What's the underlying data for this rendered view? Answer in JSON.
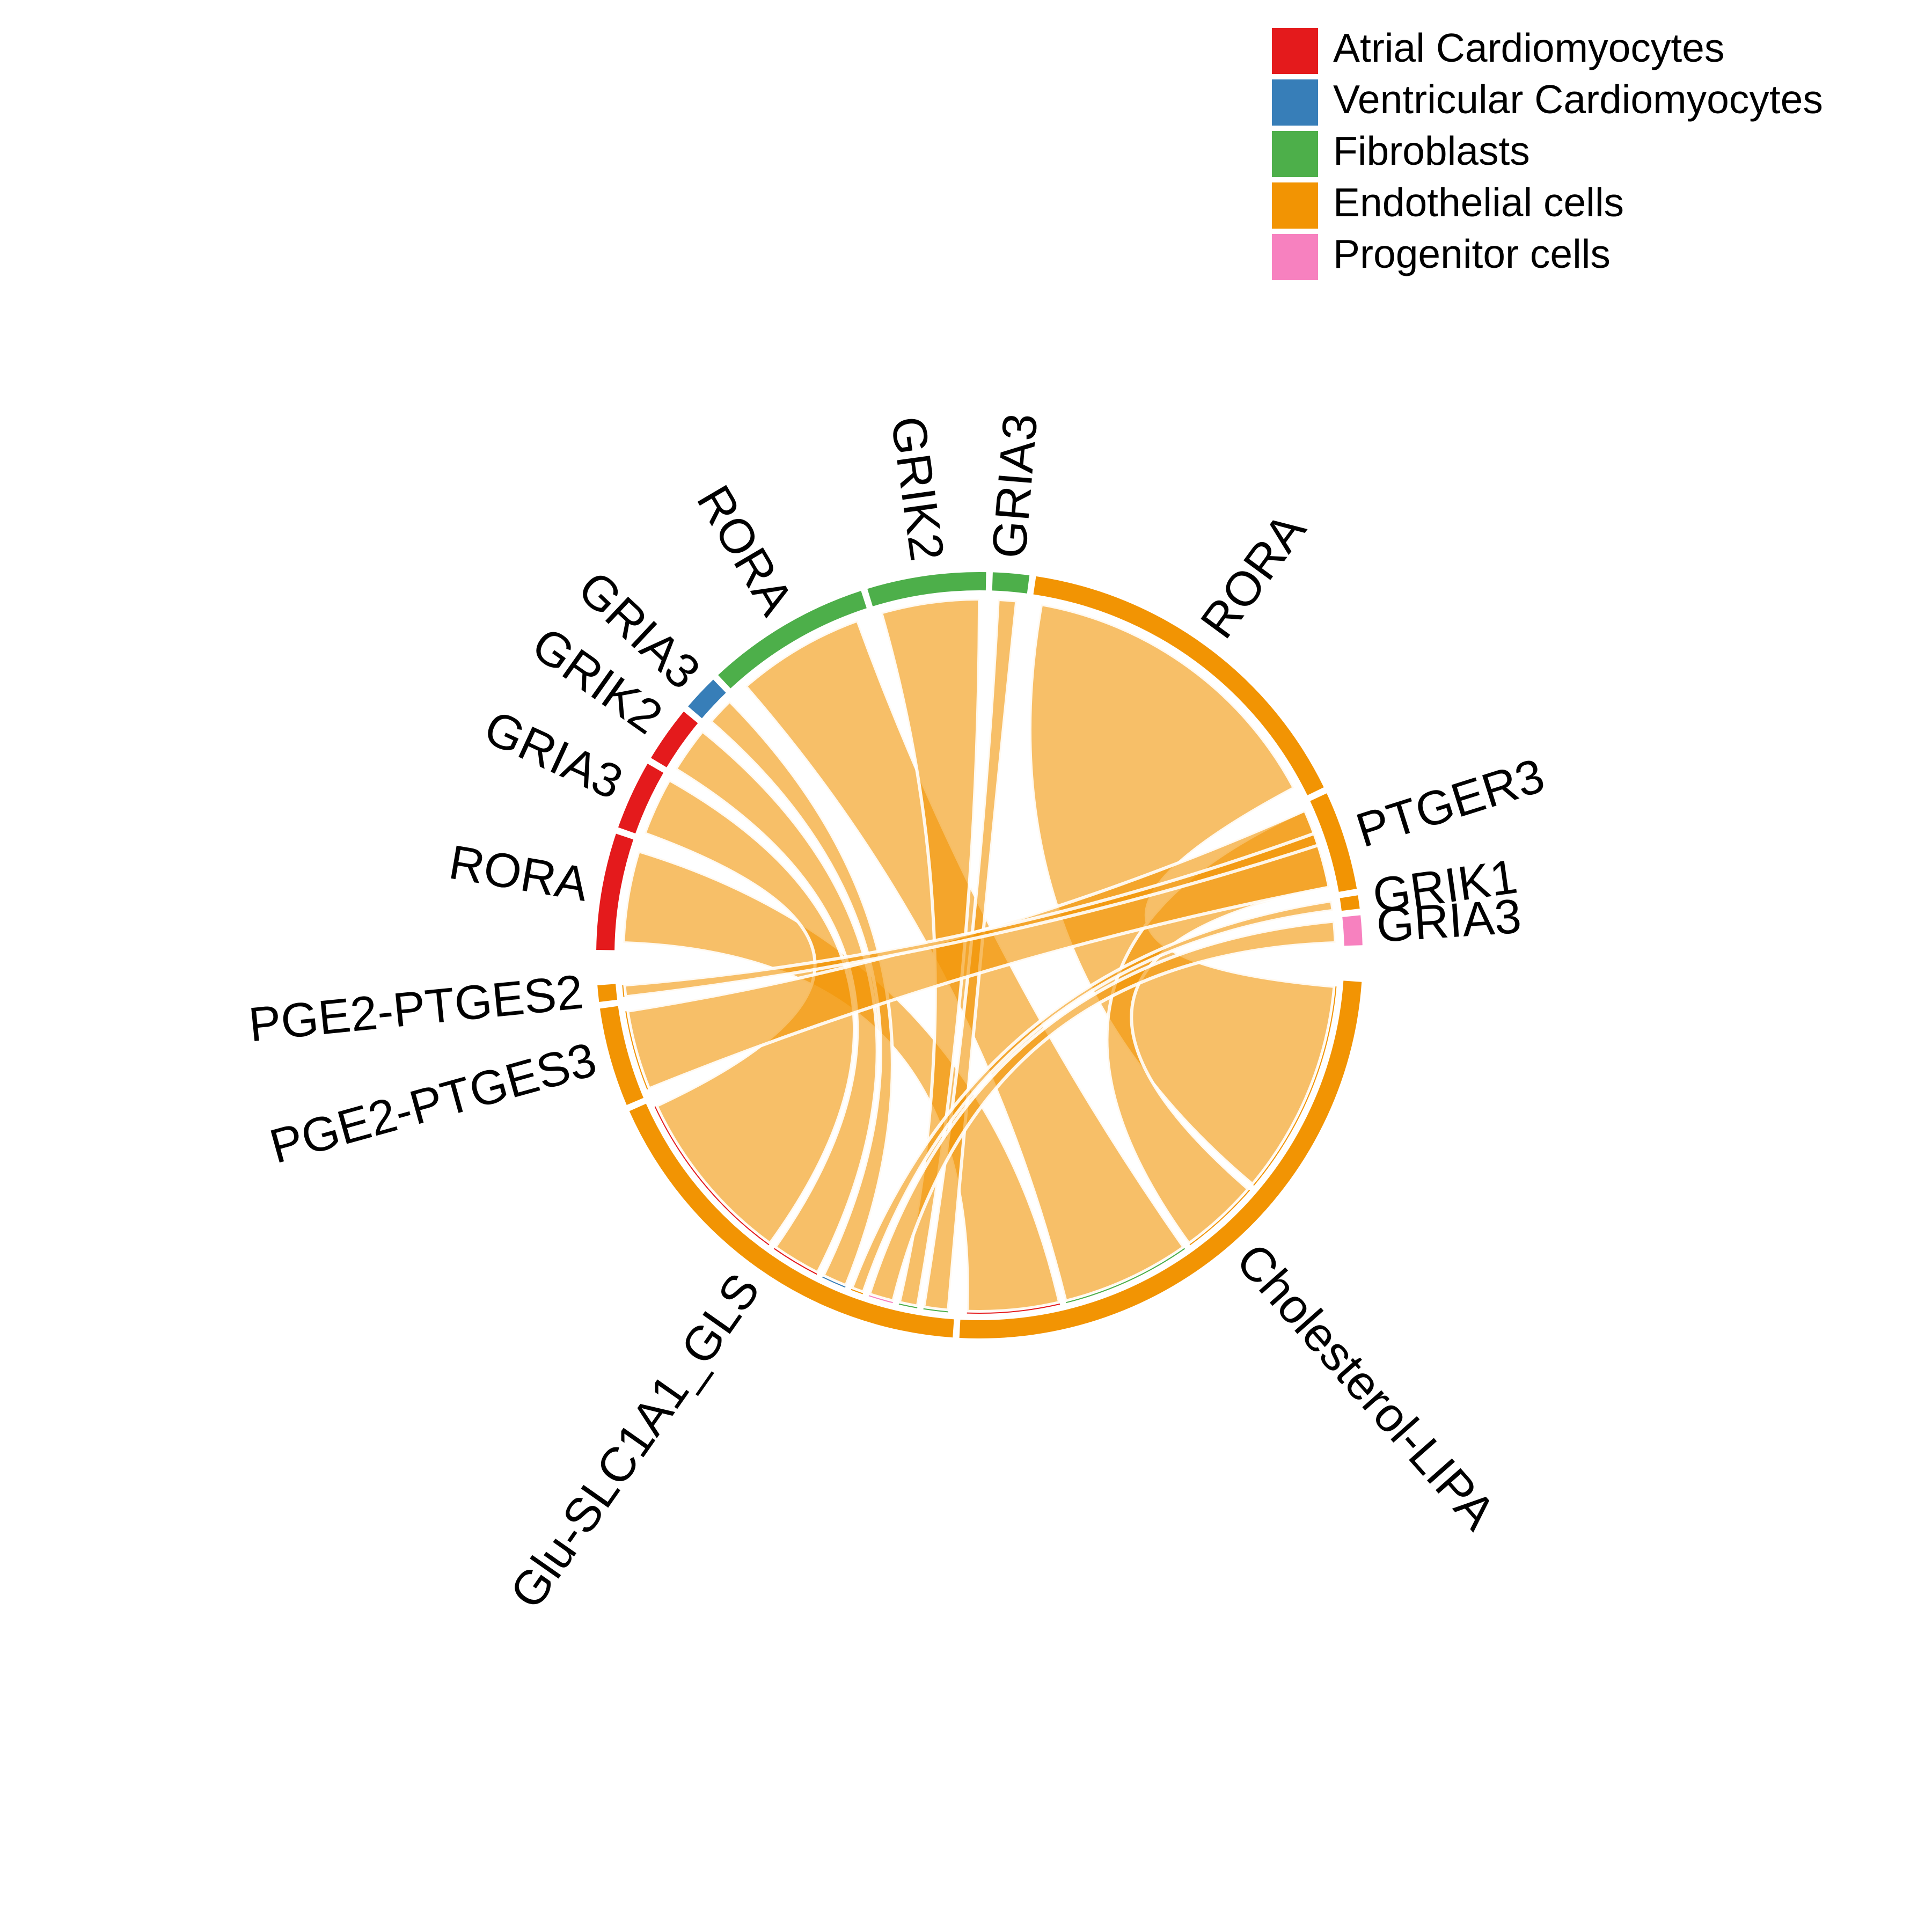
{
  "legend": {
    "items": [
      {
        "label": "Atrial Cardiomyocytes",
        "color": "#E41A1C"
      },
      {
        "label": "Ventricular Cardiomyocytes",
        "color": "#377EB8"
      },
      {
        "label": "Fibroblasts",
        "color": "#4DAF4A"
      },
      {
        "label": "Endothelial cells",
        "color": "#F29403"
      },
      {
        "label": "Progenitor cells",
        "color": "#F781BF"
      }
    ]
  },
  "link_color": "#F29403",
  "sectors": [
    {
      "id": "rora_atrial",
      "label": "RORA",
      "cell_type": "Atrial Cardiomyocytes",
      "color": "#E41A1C",
      "a0": 180.8,
      "a1": 198.5
    },
    {
      "id": "gria3_atrial",
      "label": "GRIA3",
      "cell_type": "Atrial Cardiomyocytes",
      "color": "#E41A1C",
      "a0": 199.5,
      "a1": 210.0
    },
    {
      "id": "grik2_atrial",
      "label": "GRIK2",
      "cell_type": "Atrial Cardiomyocytes",
      "color": "#E41A1C",
      "a0": 211.0,
      "a1": 219.5
    },
    {
      "id": "gria3_ventricular",
      "label": "GRIA3",
      "cell_type": "Ventricular Cardiomyocytes",
      "color": "#377EB8",
      "a0": 220.5,
      "a1": 226.0
    },
    {
      "id": "rora_fibro",
      "label": "RORA",
      "cell_type": "Fibroblasts",
      "color": "#4DAF4A",
      "a0": 227.0,
      "a1": 252.0
    },
    {
      "id": "grik2_fibro",
      "label": "GRIK2",
      "cell_type": "Fibroblasts",
      "color": "#4DAF4A",
      "a0": 253.0,
      "a1": 271.0
    },
    {
      "id": "gria3_fibro",
      "label": "GRIA3",
      "cell_type": "Fibroblasts",
      "color": "#4DAF4A",
      "a0": 272.0,
      "a1": 277.5
    },
    {
      "id": "rora_endo",
      "label": "RORA",
      "cell_type": "Endothelial cells",
      "color": "#F29403",
      "a0": 278.5,
      "a1": 334.0
    },
    {
      "id": "ptger3_endo",
      "label": "PTGER3",
      "cell_type": "Endothelial cells",
      "color": "#F29403",
      "a0": 335.0,
      "a1": 350.0
    },
    {
      "id": "grik1_endo",
      "label": "GRIK1",
      "cell_type": "Endothelial cells",
      "color": "#F29403",
      "a0": 351.0,
      "a1": 353.0
    },
    {
      "id": "gria3_prog",
      "label": "GRIA3",
      "cell_type": "Progenitor cells",
      "color": "#F781BF",
      "a0": 354.0,
      "a1": 358.5
    },
    {
      "id": "cholesterol_lipa",
      "label": "Cholesterol-LIPA",
      "cell_type": "Endothelial cells",
      "color": "#F29403",
      "a0": 4.0,
      "a1": 93.0
    },
    {
      "id": "glu_slc1a1_gls",
      "label": "Glu-SLC1A1_GLS",
      "cell_type": "Endothelial cells",
      "color": "#F29403",
      "a0": 94.0,
      "a1": 156.0
    },
    {
      "id": "pge2_ptges3",
      "label": "PGE2-PTGES3",
      "cell_type": "Endothelial cells",
      "color": "#F29403",
      "a0": 157.0,
      "a1": 172.0
    },
    {
      "id": "pge2_ptges2",
      "label": "PGE2-PTGES2",
      "cell_type": "Endothelial cells",
      "color": "#F29403",
      "a0": 173.0,
      "a1": 175.5
    }
  ],
  "links": [
    {
      "from": "cholesterol_lipa",
      "to": "rora_endo",
      "src": [
        5.0,
        40.0
      ],
      "dst": [
        280.0,
        332.0
      ]
    },
    {
      "from": "cholesterol_lipa",
      "to": "rora_fibro",
      "src": [
        55.0,
        76.0
      ],
      "dst": [
        229.0,
        250.0
      ]
    },
    {
      "from": "cholesterol_lipa",
      "to": "rora_atrial",
      "src": [
        77.0,
        92.0
      ],
      "dst": [
        182.0,
        197.0
      ]
    },
    {
      "from": "cholesterol_lipa",
      "to": "ptger3_endo",
      "src": [
        41.0,
        54.0
      ],
      "dst": [
        336.0,
        349.0
      ]
    },
    {
      "from": "glu_slc1a1_gls",
      "to": "grik2_fibro",
      "src": [
        100.0,
        103.0
      ],
      "dst": [
        254.0,
        270.0
      ]
    },
    {
      "from": "glu_slc1a1_gls",
      "to": "gria3_fibro",
      "src": [
        95.0,
        99.0
      ],
      "dst": [
        273.0,
        276.0
      ]
    },
    {
      "from": "glu_slc1a1_gls",
      "to": "gria3_prog",
      "src": [
        104.0,
        108.0
      ],
      "dst": [
        354.5,
        358.0
      ]
    },
    {
      "from": "glu_slc1a1_gls",
      "to": "grik1_endo",
      "src": [
        109.0,
        111.0
      ],
      "dst": [
        351.2,
        352.8
      ]
    },
    {
      "from": "glu_slc1a1_gls",
      "to": "gria3_ventricular",
      "src": [
        112.0,
        116.0
      ],
      "dst": [
        221.0,
        225.5
      ]
    },
    {
      "from": "glu_slc1a1_gls",
      "to": "grik2_atrial",
      "src": [
        117.0,
        125.0
      ],
      "dst": [
        211.5,
        219.0
      ]
    },
    {
      "from": "glu_slc1a1_gls",
      "to": "gria3_atrial",
      "src": [
        126.0,
        155.0
      ],
      "dst": [
        200.0,
        209.5
      ]
    },
    {
      "from": "pge2_ptges3",
      "to": "ptger3_endo",
      "src": [
        158.0,
        171.0
      ],
      "dst": [
        336.0,
        349.0
      ]
    },
    {
      "from": "pge2_ptges2",
      "to": "ptger3_endo",
      "src": [
        173.3,
        175.2
      ],
      "dst": [
        340.0,
        342.0
      ]
    }
  ]
}
